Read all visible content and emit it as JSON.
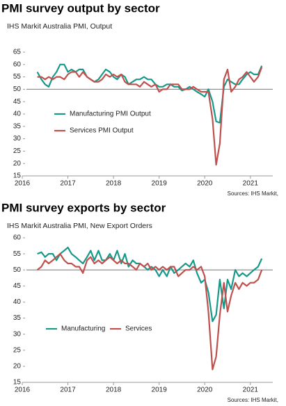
{
  "chart_data": [
    {
      "type": "line",
      "title": "PMI survey output by sector",
      "subtitle": "IHS Markit Australia PMI, Output",
      "source": "Sources: IHS Markit,",
      "x": [
        2016.33,
        2016.42,
        2016.5,
        2016.58,
        2016.67,
        2016.75,
        2016.83,
        2016.92,
        2017.0,
        2017.08,
        2017.17,
        2017.25,
        2017.33,
        2017.42,
        2017.5,
        2017.58,
        2017.67,
        2017.75,
        2017.83,
        2017.92,
        2018.0,
        2018.08,
        2018.17,
        2018.25,
        2018.33,
        2018.42,
        2018.5,
        2018.58,
        2018.67,
        2018.75,
        2018.83,
        2018.92,
        2019.0,
        2019.08,
        2019.17,
        2019.25,
        2019.33,
        2019.42,
        2019.5,
        2019.58,
        2019.67,
        2019.75,
        2019.83,
        2019.92,
        2020.0,
        2020.08,
        2020.17,
        2020.25,
        2020.33,
        2020.42,
        2020.5,
        2020.58,
        2020.67,
        2020.75,
        2020.83,
        2020.92,
        2021.0,
        2021.08,
        2021.17,
        2021.25
      ],
      "series": [
        {
          "name": "Manufacturing PMI Output",
          "color": "#17998a",
          "values": [
            57,
            54,
            52,
            51,
            55,
            57,
            60,
            60,
            57,
            58,
            57,
            58,
            58,
            55,
            54,
            53,
            54,
            56,
            58,
            57,
            55,
            54,
            56,
            55,
            52,
            53,
            54,
            54,
            55,
            54,
            54,
            52,
            51,
            51,
            52,
            52,
            51,
            51,
            49.5,
            50,
            51,
            50,
            49,
            48,
            47,
            50,
            45,
            37,
            36.5,
            51,
            54,
            53,
            52,
            52,
            54,
            56,
            57,
            56,
            56,
            59.5
          ]
        },
        {
          "name": "Services PMI Output",
          "color": "#c0504d",
          "values": [
            55,
            55,
            54,
            55,
            54,
            55,
            55,
            54,
            56,
            57,
            57,
            55,
            57,
            55,
            54,
            53,
            53,
            54,
            56,
            55,
            56,
            55,
            56,
            53,
            52,
            52,
            52,
            51,
            53,
            52,
            51,
            52,
            49,
            50,
            50,
            52,
            52,
            52,
            50,
            50,
            50,
            51,
            50,
            49,
            49,
            49,
            38,
            19.5,
            28,
            54,
            58,
            49,
            51,
            54,
            55,
            57,
            55,
            53,
            55,
            59
          ]
        }
      ],
      "xlim": [
        2016,
        2021.4
      ],
      "xticks": [
        2016,
        2017,
        2018,
        2019,
        2020,
        2021
      ],
      "ylim": [
        15,
        65
      ],
      "yticks": [
        15,
        20,
        25,
        30,
        35,
        40,
        45,
        50,
        55,
        60,
        65
      ],
      "reference_line": 50,
      "legend": "center-left"
    },
    {
      "type": "line",
      "title": "PMI survey exports by sector",
      "subtitle": "IHS Markit Australia PMI, New Export Orders",
      "source": "Sources: IHS Markit,",
      "x": [
        2016.33,
        2016.42,
        2016.5,
        2016.58,
        2016.67,
        2016.75,
        2016.83,
        2016.92,
        2017.0,
        2017.08,
        2017.17,
        2017.25,
        2017.33,
        2017.42,
        2017.5,
        2017.58,
        2017.67,
        2017.75,
        2017.83,
        2017.92,
        2018.0,
        2018.08,
        2018.17,
        2018.25,
        2018.33,
        2018.42,
        2018.5,
        2018.58,
        2018.67,
        2018.75,
        2018.83,
        2018.92,
        2019.0,
        2019.08,
        2019.17,
        2019.25,
        2019.33,
        2019.42,
        2019.5,
        2019.58,
        2019.67,
        2019.75,
        2019.83,
        2019.92,
        2020.0,
        2020.08,
        2020.17,
        2020.25,
        2020.33,
        2020.42,
        2020.5,
        2020.58,
        2020.67,
        2020.75,
        2020.83,
        2020.92,
        2021.0,
        2021.08,
        2021.17,
        2021.25
      ],
      "series": [
        {
          "name": "Manufacturing",
          "color": "#17998a",
          "values": [
            55,
            55.5,
            54,
            55,
            55,
            53,
            55,
            56,
            57,
            55,
            54,
            53,
            52,
            54,
            56,
            53,
            56,
            53,
            53,
            55,
            53,
            56,
            52,
            55,
            51,
            53,
            52,
            52,
            51,
            50,
            51,
            50,
            48,
            50,
            48,
            51,
            49,
            50,
            51,
            52,
            51,
            53,
            49,
            46,
            47,
            43,
            34,
            36,
            47,
            38,
            47,
            44,
            50,
            48,
            49,
            48,
            49,
            50,
            51,
            53.5
          ]
        },
        {
          "name": "Services",
          "color": "#c0504d",
          "values": [
            50,
            51,
            53,
            52,
            53,
            54,
            55,
            53,
            52,
            52,
            51,
            51,
            49,
            53,
            54,
            52,
            53,
            52,
            53,
            54,
            53,
            52,
            53,
            52,
            52,
            51,
            50,
            52,
            51,
            52,
            50,
            51,
            50,
            51,
            50,
            51,
            51,
            48,
            49,
            50,
            50,
            51,
            50,
            51,
            48,
            37,
            19,
            23,
            36,
            46,
            37,
            42,
            46,
            44,
            46,
            45,
            46,
            46,
            47,
            50
          ]
        }
      ],
      "xlim": [
        2016,
        2021.4
      ],
      "xticks": [
        2016,
        2017,
        2018,
        2019,
        2020,
        2021
      ],
      "ylim": [
        15,
        60
      ],
      "yticks": [
        15,
        20,
        25,
        30,
        35,
        40,
        45,
        50,
        55,
        60
      ],
      "reference_line": 50,
      "legend": "lower-left"
    }
  ]
}
